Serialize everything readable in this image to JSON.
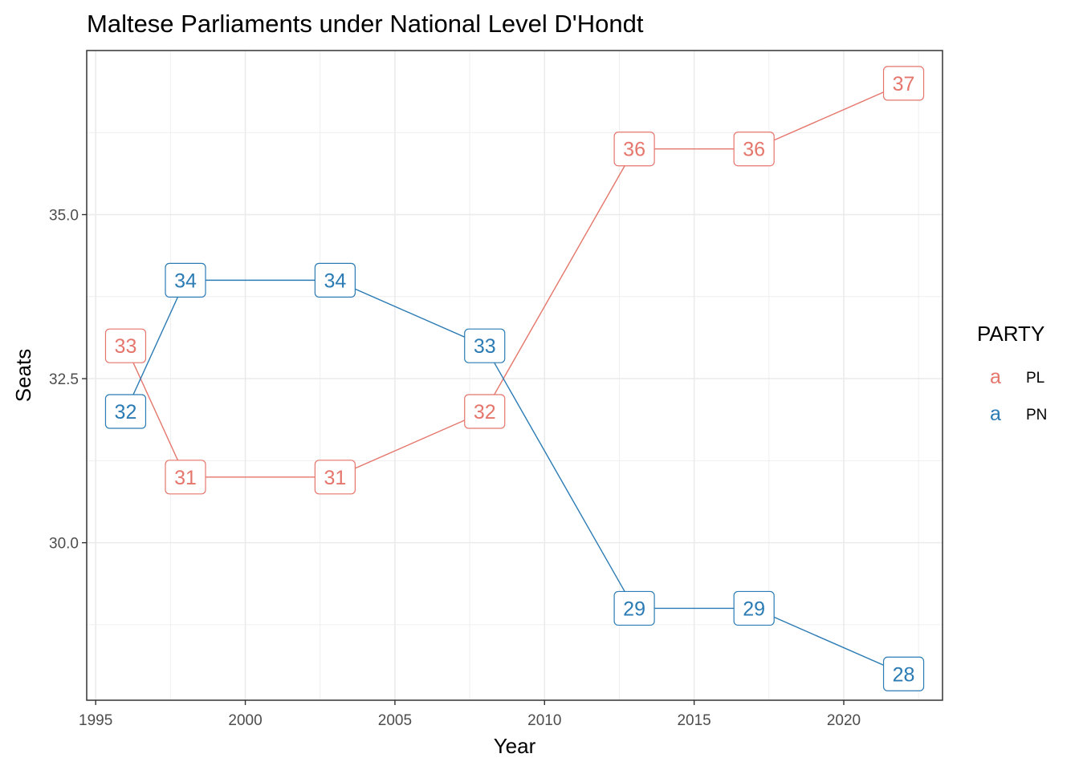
{
  "chart_data": {
    "type": "line",
    "title": "Maltese Parliaments under National Level D'Hondt",
    "xlabel": "Year",
    "ylabel": "Seats",
    "xlim": [
      1994.7,
      2023.3
    ],
    "ylim": [
      27.6,
      37.5
    ],
    "x_ticks": [
      1995,
      2000,
      2005,
      2010,
      2015,
      2020
    ],
    "x_tick_labels": [
      "1995",
      "2000",
      "2005",
      "2010",
      "2015",
      "2020"
    ],
    "y_ticks": [
      30.0,
      32.5,
      35.0
    ],
    "y_tick_labels": [
      "30.0",
      "32.5",
      "35.0"
    ],
    "grid": true,
    "legend": {
      "title": "PARTY",
      "position": "right",
      "key_glyph": "a"
    },
    "series": [
      {
        "name": "PL",
        "color": "#E5766C",
        "x": [
          1996,
          1998,
          2003,
          2008,
          2013,
          2017,
          2022
        ],
        "y": [
          33,
          31,
          31,
          32,
          36,
          36,
          37
        ],
        "labels": [
          "33",
          "31",
          "31",
          "32",
          "36",
          "36",
          "37"
        ]
      },
      {
        "name": "PN",
        "color": "#2B7BB4",
        "x": [
          1996,
          1998,
          2003,
          2008,
          2013,
          2017,
          2022
        ],
        "y": [
          32,
          34,
          34,
          33,
          29,
          29,
          28
        ],
        "labels": [
          "32",
          "34",
          "34",
          "33",
          "29",
          "29",
          "28"
        ]
      }
    ]
  }
}
